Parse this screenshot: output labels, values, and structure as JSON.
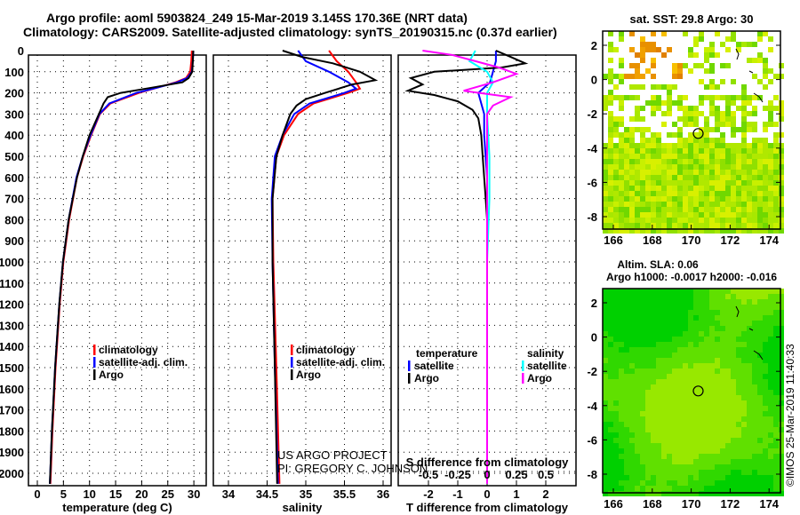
{
  "title_line1": "Argo profile: aoml 5903824_249 15-Mar-2019 3.145S 170.36E (NRT data)",
  "title_line2": "Climatology: CARS2009. Satellite-adjusted climatology: synTS_20190315.nc (0.37d earlier)",
  "credit_line1": "US ARGO PROJECT",
  "credit_line2": "PI: GREGORY C. JOHNSON",
  "timestamp": "©IMOS 25-Mar-2019 11:40:33",
  "colors": {
    "climatology": "#ff0000",
    "satellite": "#0000ff",
    "argo": "#000000",
    "sal_satellite": "#00ffff",
    "sal_argo": "#ff00ff"
  },
  "chart_data": [
    {
      "type": "line",
      "title": "",
      "xlabel": "temperature (deg C)",
      "ylabel": "depth",
      "xlim": [
        -2,
        31
      ],
      "ylim": [
        2050,
        0
      ],
      "xticks": [
        "0",
        "5",
        "10",
        "15",
        "20",
        "25",
        "30"
      ],
      "yticks": [
        "0",
        "100",
        "200",
        "300",
        "400",
        "500",
        "600",
        "700",
        "800",
        "900",
        "1000",
        "1100",
        "1200",
        "1300",
        "1400",
        "1500",
        "1600",
        "1700",
        "1800",
        "1900",
        "2000"
      ],
      "legend": {
        "placement": "bottom-right",
        "entries": [
          "climatology",
          "satellite-adj. clim.",
          "Argo"
        ]
      },
      "series": [
        {
          "name": "climatology",
          "depth": [
            0,
            50,
            100,
            130,
            150,
            175,
            200,
            250,
            300,
            400,
            500,
            600,
            800,
            1000,
            1200,
            1500,
            1800,
            2050
          ],
          "values": [
            29.6,
            29.5,
            29.3,
            28.5,
            26.5,
            23,
            19.5,
            14,
            12,
            10.3,
            8.8,
            7.6,
            6.1,
            5.0,
            4.3,
            3.5,
            2.9,
            2.5
          ]
        },
        {
          "name": "satellite-adj. clim.",
          "depth": [
            0,
            50,
            100,
            130,
            150,
            175,
            200,
            250,
            300,
            400,
            500,
            600,
            800,
            1000,
            1200,
            1500,
            1800,
            2050
          ],
          "values": [
            29.9,
            29.8,
            29.6,
            28.7,
            26.8,
            23,
            19,
            13.8,
            11.9,
            10.2,
            8.7,
            7.5,
            6.0,
            4.9,
            4.2,
            3.4,
            2.8,
            2.4
          ]
        },
        {
          "name": "Argo",
          "depth": [
            0,
            50,
            100,
            130,
            150,
            175,
            200,
            220,
            250,
            300,
            400,
            500,
            600,
            800,
            1000,
            1200,
            1500,
            1800,
            2050
          ],
          "values": [
            29.9,
            29.8,
            29.7,
            29.0,
            27.8,
            22,
            16,
            13.5,
            12.7,
            11.8,
            10.0,
            8.7,
            7.6,
            6.0,
            4.9,
            4.2,
            3.4,
            2.8,
            2.4
          ]
        }
      ]
    },
    {
      "type": "line",
      "xlabel": "salinity",
      "xlim": [
        33.8,
        36.3
      ],
      "ylim": [
        2050,
        0
      ],
      "xticks": [
        "34",
        "34.5",
        "35",
        "35.5",
        "36"
      ],
      "legend": {
        "placement": "bottom-right",
        "entries": [
          "climatology",
          "satellite-adj. clim.",
          "Argo"
        ]
      },
      "series": [
        {
          "name": "climatology",
          "depth": [
            0,
            50,
            100,
            150,
            180,
            200,
            250,
            300,
            400,
            500,
            700,
            1000,
            1500,
            2050
          ],
          "values": [
            35.3,
            35.4,
            35.55,
            35.65,
            35.7,
            35.55,
            35.1,
            34.9,
            34.72,
            34.62,
            34.57,
            34.58,
            34.62,
            34.66
          ]
        },
        {
          "name": "satellite-adj. clim.",
          "depth": [
            0,
            50,
            100,
            150,
            180,
            200,
            250,
            300,
            400,
            500,
            700,
            1000,
            1500,
            2050
          ],
          "values": [
            34.9,
            35.0,
            35.3,
            35.55,
            35.65,
            35.5,
            35.05,
            34.85,
            34.7,
            34.6,
            34.56,
            34.57,
            34.6,
            34.64
          ]
        },
        {
          "name": "Argo",
          "depth": [
            0,
            30,
            60,
            100,
            140,
            160,
            200,
            230,
            260,
            300,
            400,
            500,
            700,
            1000,
            1500,
            2050
          ],
          "values": [
            34.7,
            34.95,
            35.35,
            35.7,
            35.9,
            35.6,
            35.25,
            35.0,
            34.88,
            34.8,
            34.7,
            34.62,
            34.57,
            34.57,
            34.6,
            34.63
          ]
        }
      ]
    },
    {
      "type": "line",
      "xlabel": "T difference from climatology",
      "x2label": "S difference from climatology",
      "xlim": [
        -2.8,
        3.0
      ],
      "x2lim": [
        -0.7,
        0.75
      ],
      "ylim": [
        2050,
        0
      ],
      "xticks": [
        "-2",
        "-1",
        "0",
        "1",
        "2"
      ],
      "x2ticks": [
        "-0.5",
        "-0.25",
        "0",
        "0.25",
        "0.5"
      ],
      "legend": {
        "placement": "bottom",
        "temperature_title": "temperature",
        "salinity_title": "salinity",
        "temperature_entries": [
          "satellite",
          "Argo"
        ],
        "salinity_entries": [
          "satellite",
          "Argo"
        ]
      },
      "series": [
        {
          "name": "temperature satellite",
          "axis": "T",
          "depth": [
            0,
            50,
            100,
            150,
            200,
            250,
            300,
            400,
            600,
            800,
            1000,
            2050
          ],
          "values": [
            0.3,
            0.3,
            0.2,
            0.1,
            -0.3,
            -0.2,
            -0.1,
            -0.1,
            0.0,
            0.0,
            0.0,
            0.0
          ]
        },
        {
          "name": "temperature Argo",
          "axis": "T",
          "depth": [
            0,
            30,
            60,
            80,
            100,
            130,
            160,
            190,
            210,
            240,
            280,
            320,
            400,
            500,
            600,
            700,
            800,
            1000,
            2050
          ],
          "values": [
            0.3,
            0.8,
            1.3,
            0.5,
            -1.8,
            -2.6,
            -2.2,
            -2.7,
            -1.8,
            -1.0,
            -0.5,
            -0.3,
            -0.2,
            -0.15,
            -0.1,
            -0.05,
            0.0,
            0.0,
            0.0
          ]
        },
        {
          "name": "salinity satellite",
          "axis": "S",
          "depth": [
            0,
            50,
            100,
            150,
            200,
            300,
            500,
            700,
            1000,
            2050
          ],
          "values": [
            -0.1,
            -0.15,
            0.0,
            0.05,
            0.0,
            0.0,
            0.02,
            0.02,
            0.0,
            0.0
          ]
        },
        {
          "name": "salinity Argo",
          "axis": "S",
          "depth": [
            0,
            20,
            50,
            80,
            110,
            150,
            190,
            220,
            260,
            300,
            400,
            600,
            1000,
            2050
          ],
          "values": [
            -0.55,
            -0.3,
            -0.1,
            0.1,
            0.25,
            0.05,
            -0.2,
            0.2,
            0.05,
            0.0,
            0.0,
            0.0,
            0.0,
            0.0
          ]
        }
      ]
    },
    {
      "type": "heatmap",
      "title": "sat. SST: 29.8 Argo: 30",
      "xticks": [
        "166",
        "168",
        "170",
        "172",
        "174"
      ],
      "yticks": [
        "2",
        "0",
        "-2",
        "-4",
        "-6",
        "-8"
      ],
      "xlim": [
        165.2,
        175.5
      ],
      "ylim": [
        -9.2,
        2.8
      ],
      "argo_position": {
        "lon": 170.36,
        "lat": -3.145
      }
    },
    {
      "type": "heatmap",
      "title": "Altim. SLA: 0.06",
      "subtitle": "Argo h1000: -0.0017 h2000: -0.016",
      "xticks": [
        "166",
        "168",
        "170",
        "172",
        "174"
      ],
      "yticks": [
        "2",
        "0",
        "-2",
        "-4",
        "-6",
        "-8"
      ],
      "xlim": [
        165.2,
        175.5
      ],
      "ylim": [
        -9.2,
        2.8
      ],
      "argo_position": {
        "lon": 170.36,
        "lat": -3.145
      }
    }
  ]
}
